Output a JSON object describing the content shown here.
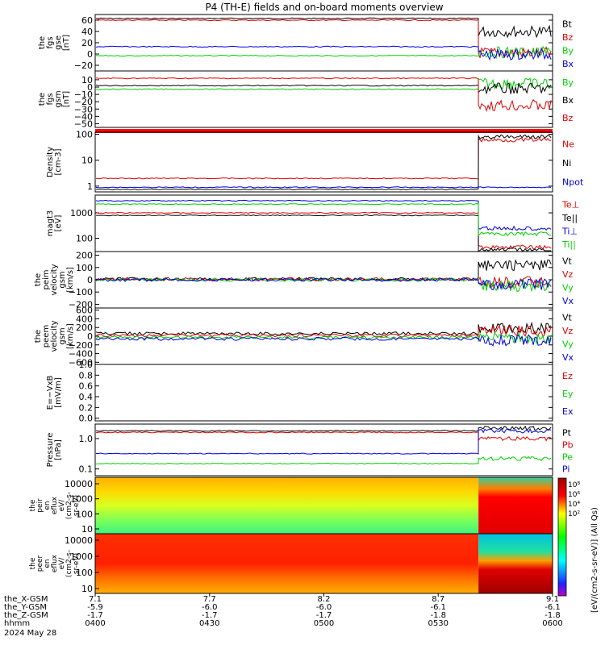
{
  "title": "P4 (TH-E) fields and on-board moments overview",
  "date_label": "2024 May 28",
  "footer": {
    "row_labels": [
      "the_X-GSM",
      "the_Y-GSM",
      "the_Z-GSM",
      "hhmm"
    ],
    "ticks": [
      {
        "x": "7.1",
        "y": "-5.9",
        "z": "-1.7",
        "t": "0400"
      },
      {
        "x": "7.7",
        "y": "-6.0",
        "z": "-1.7",
        "t": "0430"
      },
      {
        "x": "8.2",
        "y": "-6.0",
        "z": "-1.7",
        "t": "0500"
      },
      {
        "x": "8.7",
        "y": "-6.1",
        "z": "-1.8",
        "t": "0530"
      },
      {
        "x": "9.1",
        "y": "-6.1",
        "z": "-1.8",
        "t": "0600"
      }
    ]
  },
  "colors": {
    "black": "#000000",
    "red": "#e00000",
    "green": "#00d000",
    "blue": "#0000e0"
  },
  "colorbar_label": "[eV/(cm2-s-sr-eV)] (All Qs)",
  "colorbar_ticks": [
    "10⁸",
    "10⁶",
    "10⁴",
    "10²"
  ],
  "chart_data": {
    "type": "line",
    "x_range": [
      "04:00",
      "06:00"
    ],
    "panels": [
      {
        "id": "fgs_gse",
        "ylabel": [
          "the",
          "fgs",
          "gse",
          "[nT]"
        ],
        "ylim": [
          -30,
          70
        ],
        "ticks": [
          "60",
          "40",
          "20",
          "0",
          "−20"
        ],
        "series": [
          {
            "name": "Bt",
            "color": "black",
            "before": 63,
            "after": 40
          },
          {
            "name": "Bz",
            "color": "red",
            "before": 60,
            "after": 2
          },
          {
            "name": "By",
            "color": "green",
            "before": -3,
            "after": 3
          },
          {
            "name": "Bx",
            "color": "blue",
            "before": 13,
            "after": -1
          }
        ]
      },
      {
        "id": "fgs_gsm",
        "ylabel": [
          "the",
          "fgs",
          "gsm",
          "[nT]"
        ],
        "ylim": [
          -55,
          22
        ],
        "ticks": [
          "10",
          "0",
          "−10",
          "−20",
          "−30",
          "−40",
          "−50"
        ],
        "series": [
          {
            "name": "By",
            "color": "green",
            "before": -3,
            "after": 5
          },
          {
            "name": "Bx",
            "color": "black",
            "before": 2,
            "after": -2
          },
          {
            "name": "Bz",
            "color": "red",
            "before": 12,
            "after": -25
          }
        ]
      },
      {
        "id": "density",
        "ylabel": [
          "Density",
          "[cm-3]"
        ],
        "scale": "log",
        "ylim": [
          0.6,
          120
        ],
        "ticks": [
          "100",
          "10",
          "1"
        ],
        "series": [
          {
            "name": "Ne",
            "color": "red",
            "before": 2,
            "after": 60
          },
          {
            "name": "Ni",
            "color": "black",
            "before": 0.75,
            "after": 80
          },
          {
            "name": "Npot",
            "color": "blue",
            "before": 0.9,
            "after": null
          }
        ]
      },
      {
        "id": "temperature",
        "ylabel": [
          "magt3",
          "[eV]"
        ],
        "scale": "log",
        "ylim": [
          30,
          5000
        ],
        "ticks": [
          "1000",
          "100"
        ],
        "series": [
          {
            "name": "Te⊥",
            "color": "red",
            "before": 1000,
            "after": 45
          },
          {
            "name": "Te||",
            "color": "black",
            "before": 800,
            "after": 35
          },
          {
            "name": "Ti⊥",
            "color": "blue",
            "before": 3000,
            "after": 250
          },
          {
            "name": "Ti||",
            "color": "green",
            "before": 2200,
            "after": 150
          }
        ]
      },
      {
        "id": "peim_velocity",
        "ylabel": [
          "the",
          "peim",
          "velocity",
          "gsm",
          "[km/s]"
        ],
        "ylim": [
          -230,
          230
        ],
        "ticks": [
          "200",
          "100",
          "0",
          "−100",
          "−200"
        ],
        "series": [
          {
            "name": "Vt",
            "color": "black",
            "before": 5,
            "after": 120
          },
          {
            "name": "Vz",
            "color": "red",
            "before": 5,
            "after": -20
          },
          {
            "name": "Vy",
            "color": "green",
            "before": 0,
            "after": -50
          },
          {
            "name": "Vx",
            "color": "blue",
            "before": 0,
            "after": -40
          }
        ]
      },
      {
        "id": "peem_velocity",
        "ylabel": [
          "the",
          "peem",
          "velocity",
          "gsm",
          "[km/s]"
        ],
        "ylim": [
          -650,
          650
        ],
        "ticks": [
          "600",
          "400",
          "200",
          "0",
          "−200",
          "−400",
          "−600"
        ],
        "series": [
          {
            "name": "Vt",
            "color": "black",
            "before": 60,
            "after": 180
          },
          {
            "name": "Vz",
            "color": "red",
            "before": 20,
            "after": 120
          },
          {
            "name": "Vy",
            "color": "green",
            "before": -30,
            "after": -40
          },
          {
            "name": "Vx",
            "color": "blue",
            "before": -60,
            "after": -90
          }
        ]
      },
      {
        "id": "efield",
        "ylabel": [
          "E=−VxB",
          "[mV/m]"
        ],
        "ylim": [
          -0.05,
          1.0
        ],
        "ticks": [
          "1.0",
          "0.8",
          "0.6",
          "0.4",
          "0.2",
          "0.0"
        ],
        "series": [
          {
            "name": "Ez",
            "color": "red",
            "before": null,
            "after": null
          },
          {
            "name": "Ey",
            "color": "green",
            "before": null,
            "after": null
          },
          {
            "name": "Ex",
            "color": "blue",
            "before": null,
            "after": null
          }
        ]
      },
      {
        "id": "pressure",
        "ylabel": [
          "Pressure",
          "[nPa]"
        ],
        "scale": "log",
        "ylim": [
          0.06,
          3
        ],
        "ticks": [
          "1.0",
          "0.1"
        ],
        "series": [
          {
            "name": "Pt",
            "color": "black",
            "before": 1.8,
            "after": 2.2
          },
          {
            "name": "Pb",
            "color": "red",
            "before": 1.6,
            "after": 1.0
          },
          {
            "name": "Pe",
            "color": "green",
            "before": 0.15,
            "after": 0.22
          },
          {
            "name": "Pi",
            "color": "blue",
            "before": 0.32,
            "after": 1.8
          }
        ]
      }
    ],
    "spectrograms": [
      {
        "id": "peir_flux",
        "ylabel": [
          "the",
          "peir",
          "en",
          "eflux",
          "eV/",
          "(cm2-s-",
          "sr-eV)"
        ],
        "ticks": [
          "10000",
          "1000",
          "100",
          "10"
        ]
      },
      {
        "id": "peer_flux",
        "ylabel": [
          "the",
          "peer",
          "en",
          "eflux",
          "eV/",
          "(cm2-s-",
          "sr-eV)"
        ],
        "ticks": [
          "10000",
          "1000",
          "100",
          "10"
        ]
      }
    ]
  }
}
